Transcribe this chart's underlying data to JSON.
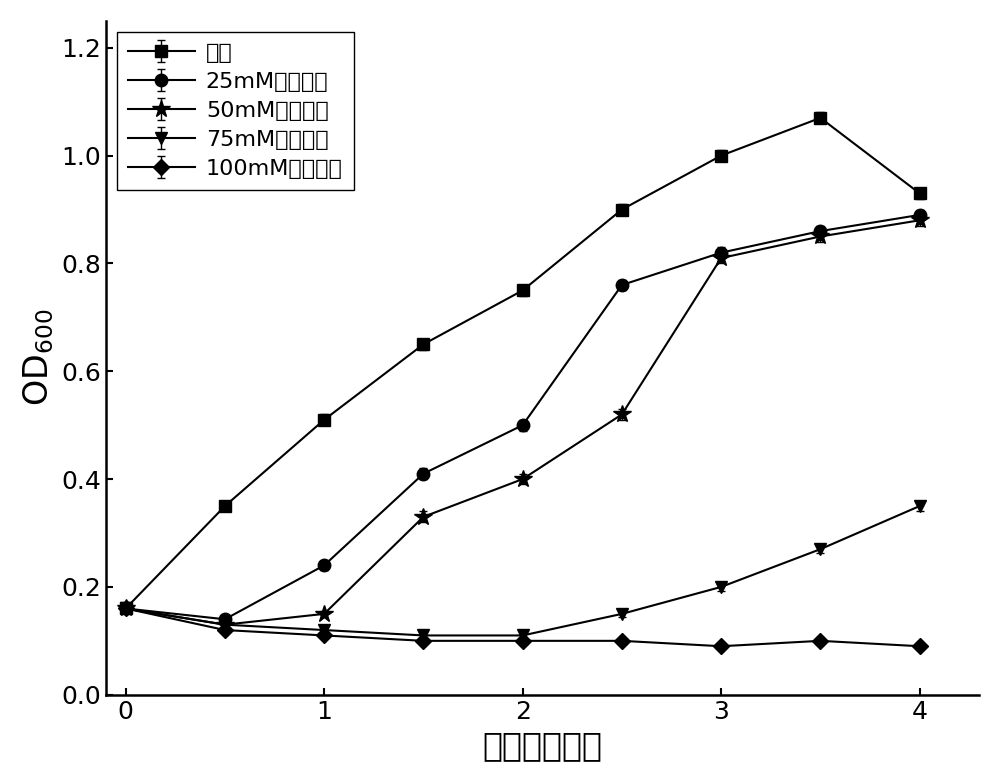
{
  "x": [
    0,
    0.5,
    1,
    1.5,
    2,
    2.5,
    3,
    3.5,
    4
  ],
  "series": [
    {
      "label": "对照",
      "y": [
        0.16,
        0.35,
        0.51,
        0.65,
        0.75,
        0.9,
        1.0,
        1.07,
        0.93
      ],
      "yerr": [
        0.005,
        0.01,
        0.01,
        0.01,
        0.01,
        0.01,
        0.01,
        0.01,
        0.01
      ],
      "marker": "s"
    },
    {
      "label": "25mM过氧化氢",
      "y": [
        0.16,
        0.14,
        0.24,
        0.41,
        0.5,
        0.76,
        0.82,
        0.86,
        0.89
      ],
      "yerr": [
        0.005,
        0.005,
        0.008,
        0.01,
        0.01,
        0.01,
        0.01,
        0.01,
        0.01
      ],
      "marker": "o"
    },
    {
      "label": "50mM过氧化氢",
      "y": [
        0.16,
        0.13,
        0.15,
        0.33,
        0.4,
        0.52,
        0.81,
        0.85,
        0.88
      ],
      "yerr": [
        0.005,
        0.005,
        0.005,
        0.01,
        0.01,
        0.01,
        0.01,
        0.01,
        0.01
      ],
      "marker": "*"
    },
    {
      "label": "75mM过氧化氢",
      "y": [
        0.16,
        0.13,
        0.12,
        0.11,
        0.11,
        0.15,
        0.2,
        0.27,
        0.35
      ],
      "yerr": [
        0.005,
        0.005,
        0.005,
        0.005,
        0.005,
        0.005,
        0.008,
        0.008,
        0.01
      ],
      "marker": "v"
    },
    {
      "label": "100mM过氧化氢",
      "y": [
        0.16,
        0.12,
        0.11,
        0.1,
        0.1,
        0.1,
        0.09,
        0.1,
        0.09
      ],
      "yerr": [
        0.005,
        0.005,
        0.005,
        0.005,
        0.005,
        0.005,
        0.005,
        0.005,
        0.005
      ],
      "marker": "D"
    }
  ],
  "xlabel": "时间（小时）",
  "xlim": [
    -0.1,
    4.3
  ],
  "ylim": [
    0.0,
    1.25
  ],
  "xticks": [
    0,
    1,
    2,
    3,
    4
  ],
  "yticks": [
    0.0,
    0.2,
    0.4,
    0.6,
    0.8,
    1.0,
    1.2
  ],
  "color": "black",
  "linewidth": 1.5,
  "markersize": 9,
  "capsize": 3,
  "background_color": "#ffffff",
  "label_fontsize": 24,
  "tick_fontsize": 18,
  "legend_fontsize": 16
}
